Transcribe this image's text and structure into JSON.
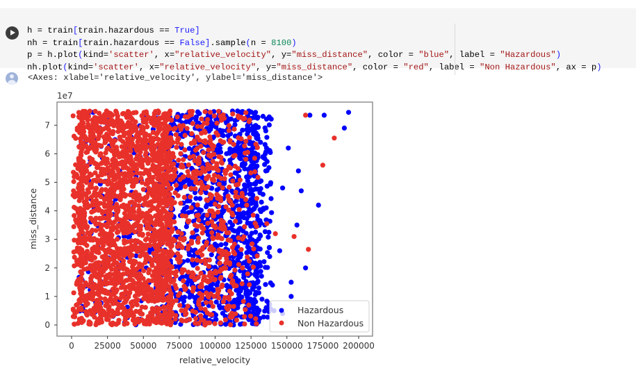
{
  "cell": {
    "run_button": "run-cell",
    "code_lines": [
      [
        [
          "h = train",
          "p"
        ],
        [
          "[",
          "paren"
        ],
        [
          "train.hazardous == ",
          "p"
        ],
        [
          "True",
          "kw"
        ],
        [
          "]",
          "paren"
        ]
      ],
      [
        [
          "nh = train",
          "p"
        ],
        [
          "[",
          "paren"
        ],
        [
          "train.hazardous == ",
          "p"
        ],
        [
          "False",
          "kw"
        ],
        [
          "]",
          "paren"
        ],
        [
          ".sample",
          "p"
        ],
        [
          "(",
          "paren"
        ],
        [
          "n = ",
          "p"
        ],
        [
          "8100",
          "num"
        ],
        [
          ")",
          "paren"
        ]
      ],
      [
        [
          "p = h.plot",
          "p"
        ],
        [
          "(",
          "paren"
        ],
        [
          "kind=",
          "p"
        ],
        [
          "'scatter'",
          "str"
        ],
        [
          ", x=",
          "p"
        ],
        [
          "\"relative_velocity\"",
          "str"
        ],
        [
          ", y=",
          "p"
        ],
        [
          "\"miss_distance\"",
          "str"
        ],
        [
          ", color = ",
          "p"
        ],
        [
          "\"blue\"",
          "str"
        ],
        [
          ", label = ",
          "p"
        ],
        [
          "\"Hazardous\"",
          "str"
        ],
        [
          ")",
          "paren"
        ]
      ],
      [
        [
          "nh.plot",
          "p"
        ],
        [
          "(",
          "paren"
        ],
        [
          "kind=",
          "p"
        ],
        [
          "'scatter'",
          "str"
        ],
        [
          ", x=",
          "p"
        ],
        [
          "\"relative_velocity\"",
          "str"
        ],
        [
          ", y=",
          "p"
        ],
        [
          "\"miss_distance\"",
          "str"
        ],
        [
          ", color = ",
          "p"
        ],
        [
          "\"red\"",
          "str"
        ],
        [
          ", label = ",
          "p"
        ],
        [
          "\"Non Hazardous\"",
          "str"
        ],
        [
          ", ax = p",
          "p"
        ],
        [
          ")",
          "paren"
        ]
      ]
    ]
  },
  "output": {
    "text": "<Axes: xlabel='relative_velocity', ylabel='miss_distance'>"
  },
  "colors": {
    "hazardous": "#0000ff",
    "non_hazardous": "#e8312a",
    "cell_bg": "#f5f5f5"
  },
  "chart_data": {
    "type": "scatter",
    "title": "",
    "xlabel": "relative_velocity",
    "ylabel": "miss_distance",
    "y_offset_label": "1e7",
    "xlim": [
      -10000,
      210000
    ],
    "ylim": [
      -0.4,
      7.8
    ],
    "y_scale": 10000000,
    "xticks": [
      0,
      25000,
      50000,
      75000,
      100000,
      125000,
      150000,
      175000,
      200000
    ],
    "xtick_labels": [
      "0",
      "25000",
      "50000",
      "75000",
      "100000",
      "125000",
      "150000",
      "175000",
      "200000"
    ],
    "yticks": [
      0,
      1,
      2,
      3,
      4,
      5,
      6,
      7
    ],
    "ytick_labels": [
      "0",
      "1",
      "2",
      "3",
      "4",
      "5",
      "6",
      "7"
    ],
    "grid": false,
    "legend": {
      "position": "lower right",
      "entries": [
        "Hazardous",
        "Non Hazardous"
      ]
    },
    "series": [
      {
        "name": "Hazardous",
        "color": "blue",
        "approx_count": 8100,
        "velocity_range": [
          4000,
          195000
        ],
        "miss_distance_range_1e7": [
          0.0,
          7.5
        ],
        "density_profile": "spread 5000-135000, densest 70000-125000, sparse tail to 195000",
        "outliers": [
          {
            "x": 193000,
            "y": 7.45
          },
          {
            "x": 190000,
            "y": 6.9
          },
          {
            "x": 166000,
            "y": 7.35
          },
          {
            "x": 176000,
            "y": 7.35
          },
          {
            "x": 172000,
            "y": 4.2
          },
          {
            "x": 160000,
            "y": 4.7
          },
          {
            "x": 151000,
            "y": 6.2
          },
          {
            "x": 158000,
            "y": 5.4
          },
          {
            "x": 147000,
            "y": 4.8
          },
          {
            "x": 153000,
            "y": 1.5
          },
          {
            "x": 153000,
            "y": 1.0
          },
          {
            "x": 141000,
            "y": 0.5
          },
          {
            "x": 147000,
            "y": 0.4
          },
          {
            "x": 138000,
            "y": 2.4
          },
          {
            "x": 157000,
            "y": 3.5
          },
          {
            "x": 163000,
            "y": 2.0
          },
          {
            "x": 145000,
            "y": 2.6
          }
        ]
      },
      {
        "name": "Non Hazardous",
        "color": "red",
        "approx_count": 8100,
        "velocity_range": [
          1000,
          185000
        ],
        "miss_distance_range_1e7": [
          0.0,
          7.5
        ],
        "density_profile": "solid block 5000-70000, thinning to 130000, rare beyond",
        "outliers": [
          {
            "x": 183000,
            "y": 6.55
          },
          {
            "x": 175000,
            "y": 5.6
          },
          {
            "x": 163000,
            "y": 7.35
          },
          {
            "x": 165000,
            "y": 2.65
          },
          {
            "x": 155000,
            "y": 3.1
          },
          {
            "x": 136000,
            "y": 3.55
          },
          {
            "x": 122000,
            "y": 4.2
          },
          {
            "x": 142000,
            "y": 3.2
          }
        ]
      }
    ]
  }
}
